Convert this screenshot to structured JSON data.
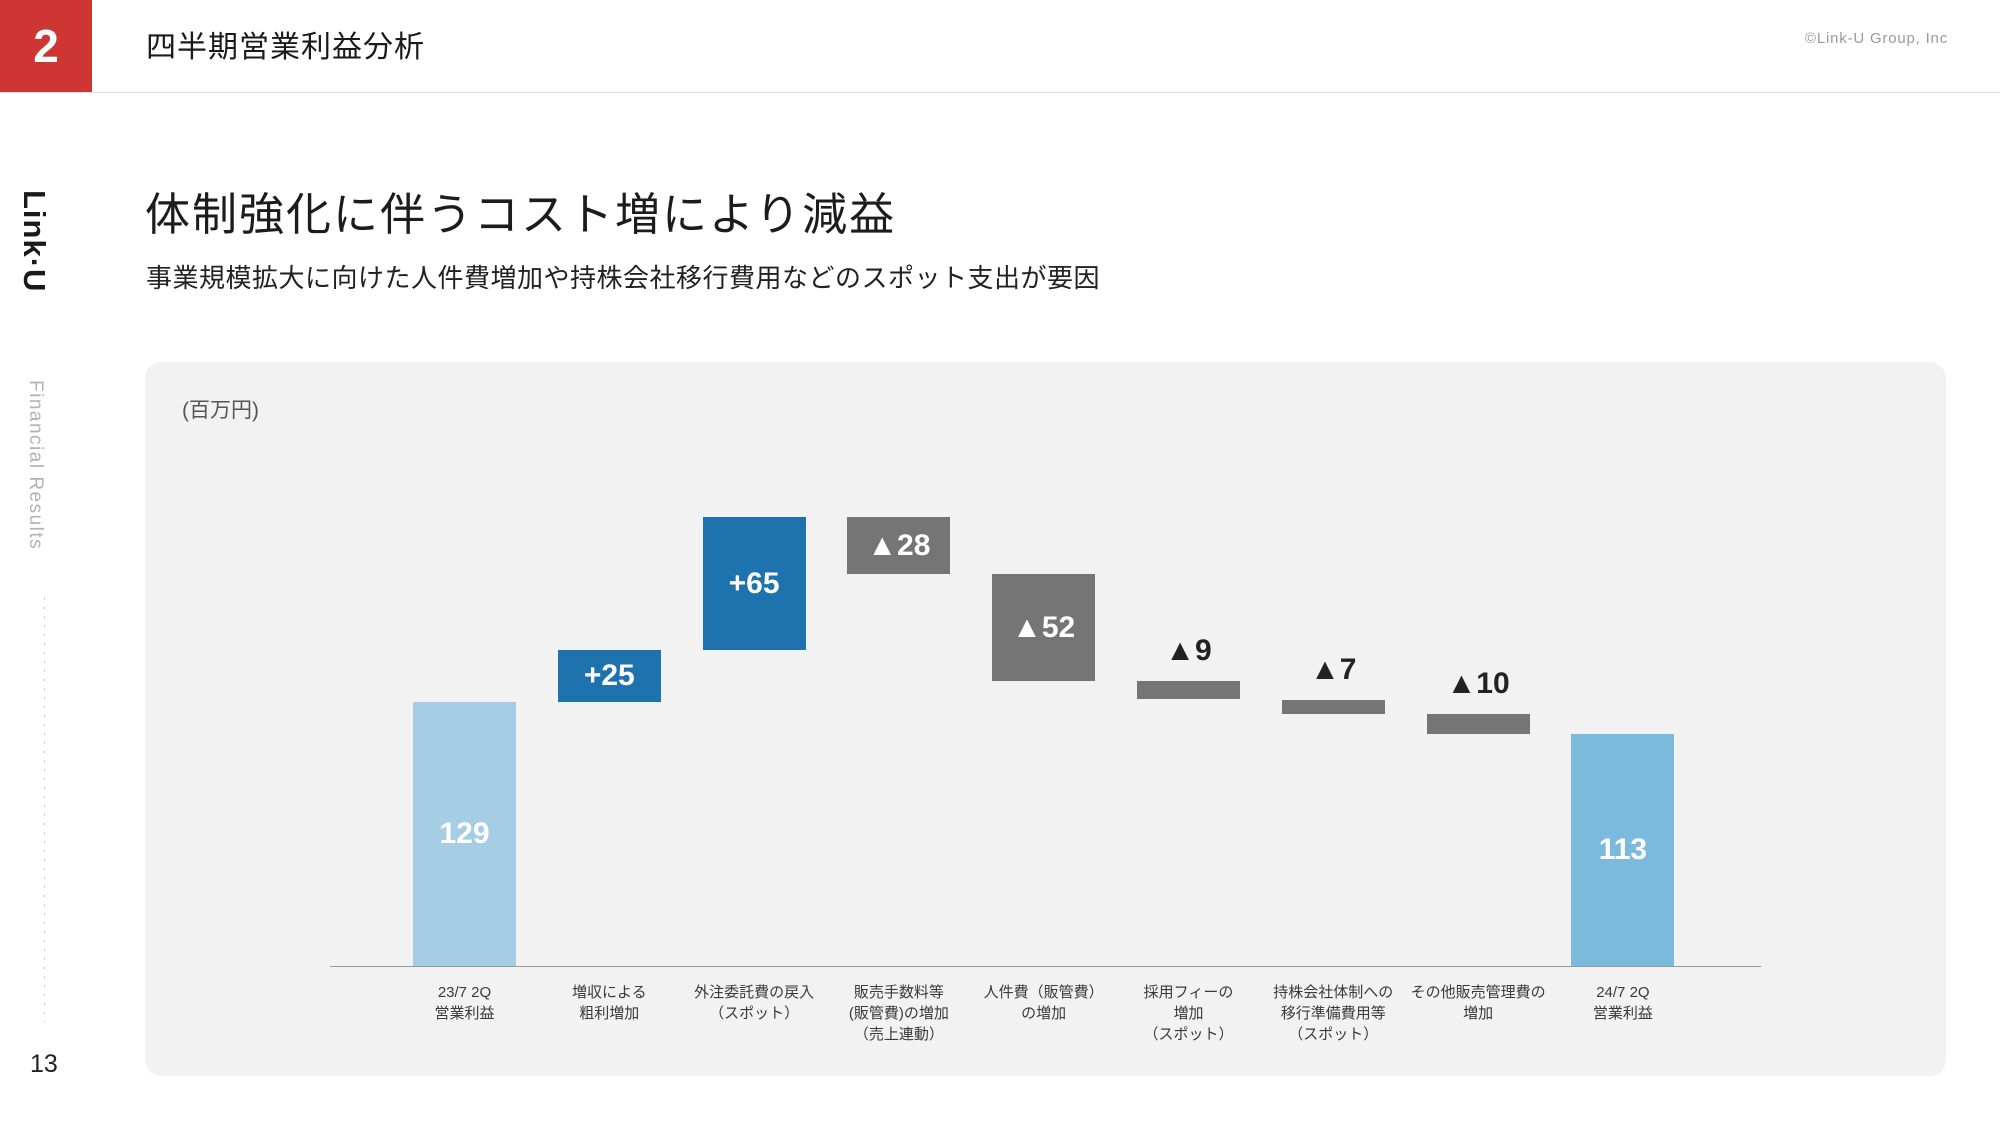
{
  "slide": {
    "section_number": "2",
    "header_title": "四半期営業利益分析",
    "copyright": "©Link-U Group, Inc",
    "logo": "Link·U",
    "sidebar_label": "Financial Results",
    "title": "体制強化に伴うコスト増により減益",
    "subtitle": "事業規模拡大に向けた人件費増加や持株会社移行費用などのスポット支出が要因",
    "page_number": "13"
  },
  "chart_data": {
    "type": "bar",
    "subtype": "waterfall",
    "title": "",
    "unit_label": "(百万円)",
    "xlabel": "",
    "ylabel": "百万円",
    "ylim": [
      0,
      230
    ],
    "grid": false,
    "bars": [
      {
        "category_lines": [
          "23/7 2Q",
          "営業利益"
        ],
        "value": 129,
        "kind": "total",
        "display": "129",
        "color": "#a5cde3",
        "label_style": "inside-white"
      },
      {
        "category_lines": [
          "増収による",
          "粗利増加"
        ],
        "value": 25,
        "kind": "increase",
        "display": "+25",
        "color": "#1e72ad",
        "label_style": "inside-white"
      },
      {
        "category_lines": [
          "外注委託費の戻入",
          "（スポット）"
        ],
        "value": 65,
        "kind": "increase",
        "display": "+65",
        "color": "#1e72ad",
        "label_style": "inside-white"
      },
      {
        "category_lines": [
          "販売手数料等",
          "(販管費)の増加",
          "（売上連動）"
        ],
        "value": -28,
        "kind": "decrease",
        "display": "▲28",
        "color": "#757575",
        "label_style": "inside-white"
      },
      {
        "category_lines": [
          "人件費（販管費）",
          "の増加"
        ],
        "value": -52,
        "kind": "decrease",
        "display": "▲52",
        "color": "#757575",
        "label_style": "inside-white"
      },
      {
        "category_lines": [
          "採用フィーの",
          "増加",
          "（スポット）"
        ],
        "value": -9,
        "kind": "decrease",
        "display": "▲9",
        "color": "#757575",
        "label_style": "above-dark"
      },
      {
        "category_lines": [
          "持株会社体制への",
          "移行準備費用等",
          "（スポット）"
        ],
        "value": -7,
        "kind": "decrease",
        "display": "▲7",
        "color": "#757575",
        "label_style": "above-dark"
      },
      {
        "category_lines": [
          "その他販売管理費の",
          "増加"
        ],
        "value": -10,
        "kind": "decrease",
        "display": "▲10",
        "color": "#757575",
        "label_style": "above-dark"
      },
      {
        "category_lines": [
          "24/7 2Q",
          "営業利益"
        ],
        "value": 113,
        "kind": "total",
        "display": "113",
        "color": "#7cbadd",
        "label_style": "inside-white"
      }
    ],
    "colors": {
      "start_total": "#a5cde3",
      "increase": "#1e72ad",
      "decrease": "#757575",
      "end_total": "#7cbadd",
      "axis_line": "#999999",
      "panel_background": "#f2f2f2",
      "accent_red": "#cd3632"
    }
  }
}
